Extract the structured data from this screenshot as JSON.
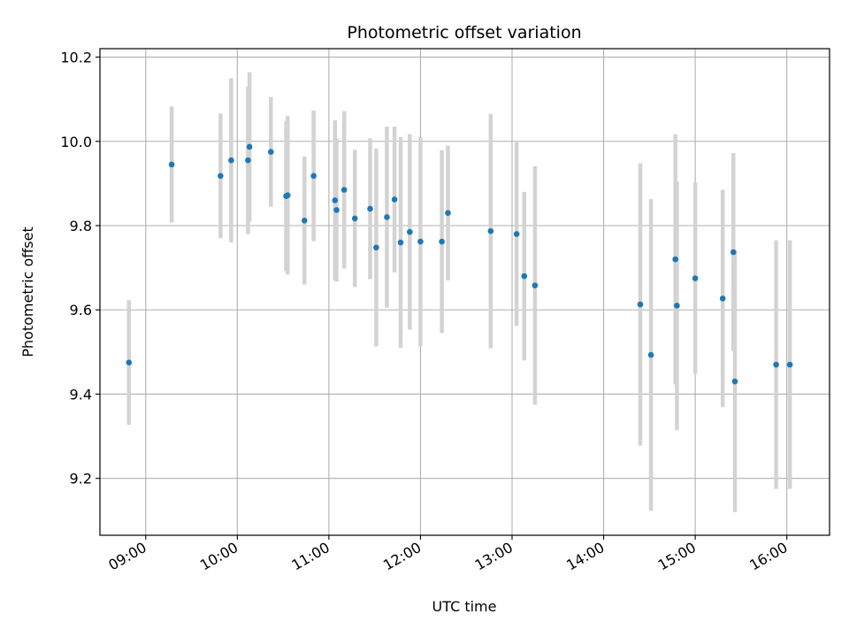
{
  "chart_data": {
    "type": "scatter",
    "title": "Photometric offset variation",
    "xlabel": "UTC time",
    "ylabel": "Photometric offset",
    "x_ticks": [
      "09:00",
      "10:00",
      "11:00",
      "12:00",
      "13:00",
      "14:00",
      "15:00",
      "16:00"
    ],
    "y_ticks": [
      "9.2",
      "9.4",
      "9.6",
      "9.8",
      "10.0",
      "10.2"
    ],
    "xlim": [
      "08:30",
      "16:28"
    ],
    "ylim": [
      9.065,
      10.22
    ],
    "grid": true,
    "point_color": "#1f77b4",
    "errorbar_color": "#d3d3d3",
    "series": [
      {
        "x": [
          "08:49",
          "09:17",
          "09:49",
          "09:56",
          "10:07",
          "10:08",
          "10:22",
          "10:32",
          "10:33",
          "10:44",
          "10:50",
          "11:04",
          "11:05",
          "11:10",
          "11:17",
          "11:27",
          "11:31",
          "11:38",
          "11:43",
          "11:47",
          "11:53",
          "12:00",
          "12:14",
          "12:18",
          "12:46",
          "13:03",
          "13:08",
          "13:15",
          "14:24",
          "14:31",
          "14:47",
          "14:48",
          "15:00",
          "15:18",
          "15:25",
          "15:26",
          "15:53",
          "16:02"
        ],
        "y": [
          9.475,
          9.945,
          9.918,
          9.955,
          9.955,
          9.987,
          9.975,
          9.87,
          9.872,
          9.812,
          9.918,
          9.86,
          9.837,
          9.885,
          9.817,
          9.84,
          9.748,
          9.82,
          9.862,
          9.76,
          9.785,
          9.762,
          9.762,
          9.83,
          9.787,
          9.78,
          9.68,
          9.658,
          9.613,
          9.493,
          9.72,
          9.61,
          9.675,
          9.627,
          9.737,
          9.43,
          9.47,
          9.47
        ],
        "yerr": [
          0.148,
          0.138,
          0.148,
          0.195,
          0.175,
          0.177,
          0.13,
          0.178,
          0.188,
          0.152,
          0.155,
          0.19,
          0.17,
          0.187,
          0.163,
          0.167,
          0.235,
          0.215,
          0.173,
          0.25,
          0.232,
          0.248,
          0.217,
          0.16,
          0.278,
          0.218,
          0.2,
          0.283,
          0.335,
          0.37,
          0.297,
          0.295,
          0.227,
          0.258,
          0.235,
          0.31,
          0.295,
          0.295
        ]
      }
    ]
  }
}
